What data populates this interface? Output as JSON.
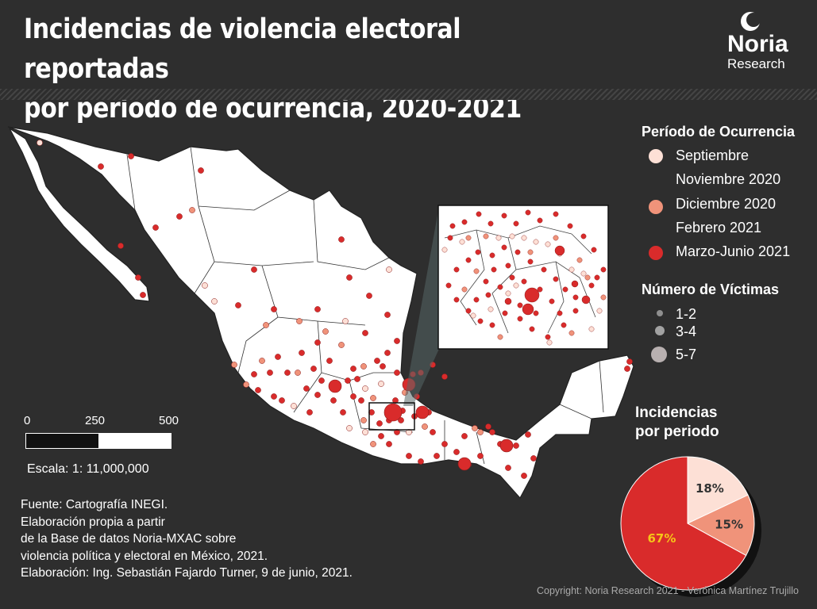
{
  "title_lines": [
    "Incidencias de violencia electoral reportadas",
    "por periodo de ocurrencia, 2020-2021"
  ],
  "logo": {
    "name": "Noria",
    "subtitle": "Research"
  },
  "legend_period": {
    "title": "Período de Ocurrencia",
    "items": [
      {
        "lines": [
          "Septiembre",
          "Noviembre 2020"
        ],
        "color": "#fde0d6"
      },
      {
        "lines": [
          "Diciembre 2020",
          "Febrero 2021"
        ],
        "color": "#f0937a"
      },
      {
        "lines": [
          "Marzo-Junio 2021"
        ],
        "color": "#d92b2b"
      }
    ]
  },
  "legend_victims": {
    "title": "Número de Víctimas",
    "items": [
      {
        "label": "1-2",
        "color": "#8f8f8f"
      },
      {
        "label": "3-4",
        "color": "#a2a2a2"
      },
      {
        "label": "5-7",
        "color": "#b8b0b0"
      }
    ]
  },
  "scale": {
    "ticks": [
      "0",
      "250",
      "500"
    ],
    "text": "Escala: 1: 11,000,000"
  },
  "source_lines": [
    "Fuente: Cartografía INEGI.",
    "Elaboración propia a partir",
    "de la Base de datos Noria-MXAC sobre",
    "violencia política y electoral en México, 2021.",
    "Elaboración: Ing. Sebastián Fajardo Turner, 9 de junio, 2021."
  ],
  "pie": {
    "title_lines": [
      "Incidencias",
      "por periodo"
    ],
    "label_color_highlight": "#f5c518"
  },
  "chart_data": {
    "type": "pie",
    "categories": [
      "Septiembre Noviembre 2020",
      "Diciembre 2020 Febrero 2021",
      "Marzo-Junio 2021"
    ],
    "values": [
      18,
      15,
      67
    ],
    "labels": [
      "18%",
      "15%",
      "67%"
    ],
    "colors": [
      "#fde0d6",
      "#f0937a",
      "#d92b2b"
    ]
  },
  "copyright": "Copyright: Noria Research 2021 - Verónica Martínez Trujillo"
}
